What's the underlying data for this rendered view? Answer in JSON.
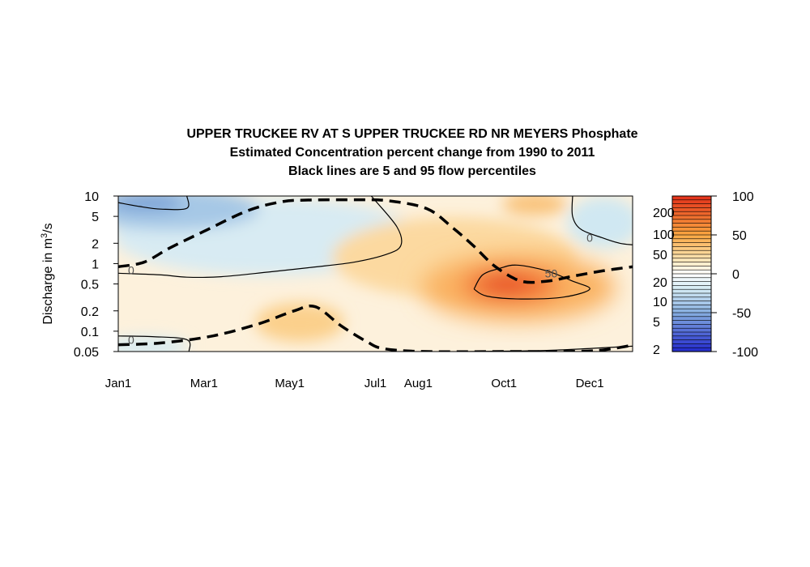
{
  "chart_data": {
    "type": "heatmap",
    "title_lines": [
      "UPPER TRUCKEE RV AT S UPPER TRUCKEE RD NR MEYERS  Phosphate",
      "Estimated Concentration percent change from 1990 to 2011",
      "Black lines are 5 and 95 flow percentiles"
    ],
    "ylabel": "Discharge in m³/s",
    "y_scale": "log",
    "ylim": [
      0.05,
      10
    ],
    "y_ticks": [
      {
        "value": 10,
        "label": "10"
      },
      {
        "value": 5,
        "label": "5"
      },
      {
        "value": 2,
        "label": "2"
      },
      {
        "value": 1,
        "label": "1"
      },
      {
        "value": 0.5,
        "label": "0.5"
      },
      {
        "value": 0.2,
        "label": "0.2"
      },
      {
        "value": 0.1,
        "label": "0.1"
      },
      {
        "value": 0.05,
        "label": "0.05"
      }
    ],
    "xlim": [
      0,
      12
    ],
    "x_ticks": [
      {
        "value": 0,
        "label": "Jan1"
      },
      {
        "value": 2,
        "label": "Mar1"
      },
      {
        "value": 4,
        "label": "May1"
      },
      {
        "value": 6,
        "label": "Jul1"
      },
      {
        "value": 7,
        "label": "Aug1"
      },
      {
        "value": 9,
        "label": "Oct1"
      },
      {
        "value": 11,
        "label": "Dec1"
      }
    ],
    "x_units": "months since Jan1",
    "contour_labels": [
      {
        "text": "0",
        "x": 0.3,
        "y": 0.8
      },
      {
        "text": "0",
        "x": 0.3,
        "y": 0.075
      },
      {
        "text": "50",
        "x": 10.1,
        "y": 0.72
      },
      {
        "text": "0",
        "x": 11.0,
        "y": 2.4
      }
    ],
    "percentile_lines": [
      {
        "name": "95 flow percentile",
        "points": [
          [
            0,
            0.9
          ],
          [
            0.6,
            1.05
          ],
          [
            1.2,
            1.7
          ],
          [
            2.0,
            3.0
          ],
          [
            3.0,
            6.0
          ],
          [
            3.8,
            8.2
          ],
          [
            4.4,
            8.7
          ],
          [
            5.6,
            8.8
          ],
          [
            6.3,
            8.5
          ],
          [
            7.2,
            6.5
          ],
          [
            7.8,
            3.4
          ],
          [
            8.3,
            1.8
          ],
          [
            8.8,
            0.9
          ],
          [
            9.4,
            0.55
          ],
          [
            10.0,
            0.55
          ],
          [
            10.6,
            0.65
          ],
          [
            11.3,
            0.78
          ],
          [
            12,
            0.9
          ]
        ]
      },
      {
        "name": "5 flow percentile",
        "points": [
          [
            0,
            0.063
          ],
          [
            1.0,
            0.067
          ],
          [
            2.2,
            0.085
          ],
          [
            3.3,
            0.13
          ],
          [
            4.1,
            0.2
          ],
          [
            4.6,
            0.23
          ],
          [
            5.2,
            0.12
          ],
          [
            5.8,
            0.07
          ],
          [
            6.2,
            0.055
          ],
          [
            7.2,
            0.05
          ],
          [
            9.2,
            0.05
          ],
          [
            10.2,
            0.05
          ],
          [
            11.2,
            0.052
          ],
          [
            12,
            0.062
          ]
        ]
      }
    ],
    "contour_lines": [
      {
        "value": 0,
        "points": [
          [
            0,
            8.0
          ],
          [
            0.5,
            7.0
          ],
          [
            1.0,
            6.4
          ],
          [
            1.6,
            6.6
          ],
          [
            1.6,
            10
          ]
        ]
      },
      {
        "value": 0,
        "points": [
          [
            0,
            0.72
          ],
          [
            1.0,
            0.68
          ],
          [
            1.6,
            0.63
          ],
          [
            2.4,
            0.64
          ],
          [
            3.5,
            0.75
          ],
          [
            4.5,
            0.88
          ],
          [
            5.5,
            1.05
          ],
          [
            6.3,
            1.4
          ],
          [
            6.6,
            1.9
          ],
          [
            6.5,
            3.5
          ],
          [
            6.0,
            8.5
          ],
          [
            5.9,
            10
          ]
        ]
      },
      {
        "value": 0,
        "points": [
          [
            0,
            0.085
          ],
          [
            0.8,
            0.083
          ],
          [
            1.6,
            0.075
          ],
          [
            1.65,
            0.05
          ]
        ]
      },
      {
        "value": 50,
        "points": [
          [
            8.3,
            0.42
          ],
          [
            8.5,
            0.68
          ],
          [
            8.9,
            0.85
          ],
          [
            9.3,
            0.95
          ],
          [
            10.0,
            0.78
          ],
          [
            10.6,
            0.55
          ],
          [
            11.0,
            0.42
          ],
          [
            10.4,
            0.32
          ],
          [
            9.4,
            0.3
          ],
          [
            8.6,
            0.33
          ],
          [
            8.3,
            0.42
          ]
        ]
      },
      {
        "value": 0,
        "points": [
          [
            10.6,
            10
          ],
          [
            10.6,
            5.0
          ],
          [
            10.8,
            3.2
          ],
          [
            11.3,
            2.4
          ],
          [
            11.7,
            2.0
          ],
          [
            12,
            1.9
          ]
        ]
      },
      {
        "value": 0,
        "points": [
          [
            8.0,
            0.05
          ],
          [
            10.0,
            0.052
          ],
          [
            12,
            0.06
          ]
        ]
      }
    ],
    "colorbar": {
      "left_labels": [
        "200",
        "100",
        "50",
        "20",
        "10",
        "5",
        "2"
      ],
      "right_labels": [
        "100",
        "50",
        "0",
        "-50",
        "-100"
      ],
      "range": [
        -100,
        100
      ]
    },
    "colors": {
      "neg_strong": "#2229cc",
      "neg_mid": "#86aee0",
      "neg_light": "#d4eaf4",
      "zero": "#ffffff",
      "pos_light": "#fde3b0",
      "pos_mid": "#f9a640",
      "pos_strong": "#e3301a",
      "line": "#000000"
    }
  }
}
